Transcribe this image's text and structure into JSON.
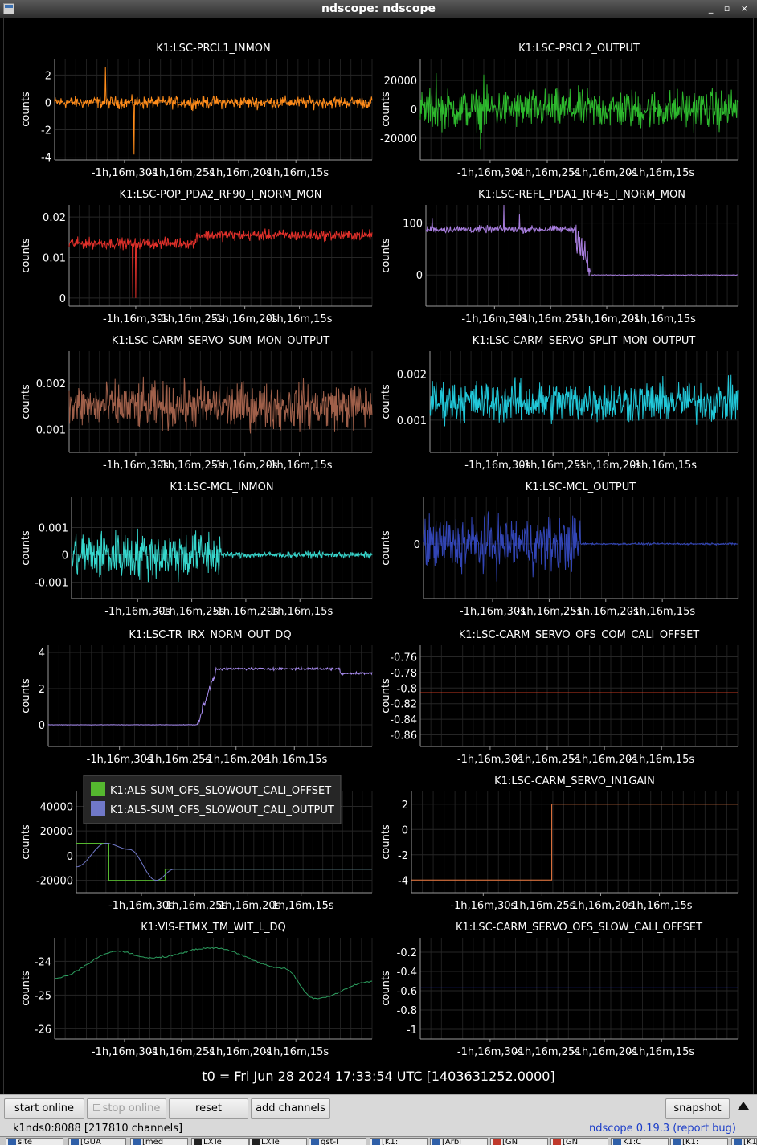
{
  "window": {
    "title": "ndscope: ndscope",
    "buttons_glyph": "_ ▫ ×"
  },
  "x_ticks": [
    "-1h,16m,30s",
    "-1h,16m,25s",
    "-1h,16m,20s",
    "-1h,16m,15s"
  ],
  "t0_label": "t0 = Fri Jun 28 2024 17:33:54 UTC [1403631252.0000]",
  "y_axis_label": "counts",
  "panels": [
    {
      "title": "K1:LSC-PRCL1_INMON",
      "y_ticks": [
        "2",
        "0",
        "-2",
        "-4"
      ],
      "color": "#ff8c1a"
    },
    {
      "title": "K1:LSC-PRCL2_OUTPUT",
      "y_ticks": [
        "20000",
        "0",
        "-20000"
      ],
      "color": "#2db82d"
    },
    {
      "title": "K1:LSC-POP_PDA2_RF90_I_NORM_MON",
      "y_ticks": [
        "0.02",
        "0.01",
        "0"
      ],
      "color": "#e0302a"
    },
    {
      "title": "K1:LSC-REFL_PDA1_RF45_I_NORM_MON",
      "y_ticks": [
        "100",
        "0"
      ],
      "color": "#a77ddd"
    },
    {
      "title": "K1:LSC-CARM_SERVO_SUM_MON_OUTPUT",
      "y_ticks": [
        "0.002",
        "0.001"
      ],
      "color": "#a0604a"
    },
    {
      "title": "K1:LSC-CARM_SERVO_SPLIT_MON_OUTPUT",
      "y_ticks": [
        "0.002",
        "0.001"
      ],
      "color": "#21c7d8"
    },
    {
      "title": "K1:LSC-MCL_INMON",
      "y_ticks": [
        "0.001",
        "0",
        "-0.001"
      ],
      "color": "#36d6cc"
    },
    {
      "title": "K1:LSC-MCL_OUTPUT",
      "y_ticks": [
        "0"
      ],
      "color": "#3245b5"
    },
    {
      "title": "K1:LSC-TR_IRX_NORM_OUT_DQ",
      "y_ticks": [
        "4",
        "2",
        "0"
      ],
      "color": "#a88cf0"
    },
    {
      "title": "K1:LSC-CARM_SERVO_OFS_COM_CALI_OFFSET",
      "y_ticks": [
        "-0.76",
        "-0.78",
        "-0.8",
        "-0.82",
        "-0.84",
        "-0.86"
      ],
      "color": "#ff4a2a"
    },
    {
      "title": "",
      "y_ticks": [
        "40000",
        "20000",
        "0",
        "-20000"
      ],
      "color": "#2db82d",
      "legend": [
        {
          "label": "K1:ALS-SUM_OFS_SLOWOUT_CALI_OFFSET",
          "color": "#55b82f"
        },
        {
          "label": "K1:ALS-SUM_OFS_SLOWOUT_CALI_OUTPUT",
          "color": "#7078c8"
        }
      ]
    },
    {
      "title": "K1:LSC-CARM_SERVO_IN1GAIN",
      "y_ticks": [
        "2",
        "0",
        "-2",
        "-4"
      ],
      "color": "#f07a40"
    },
    {
      "title": "K1:VIS-ETMX_TM_WIT_L_DQ",
      "y_ticks": [
        "-24",
        "-25",
        "-26"
      ],
      "color": "#2da060"
    },
    {
      "title": "K1:LSC-CARM_SERVO_OFS_SLOW_CALI_OFFSET",
      "y_ticks": [
        "-0.2",
        "-0.4",
        "-0.6",
        "-0.8",
        "-1"
      ],
      "color": "#2f3ff0"
    }
  ],
  "chart_data": [
    {
      "type": "line",
      "title": "K1:LSC-PRCL1_INMON",
      "ylabel": "counts",
      "ylim": [
        -4.2,
        3.2
      ],
      "series": [
        {
          "shape": "noise",
          "mean": 0,
          "amp": 0.4,
          "spikes": [
            [
              0.16,
              2.6
            ],
            [
              0.25,
              -3.8
            ]
          ]
        }
      ]
    },
    {
      "type": "line",
      "title": "K1:LSC-PRCL2_OUTPUT",
      "ylabel": "counts",
      "ylim": [
        -35000,
        35000
      ],
      "series": [
        {
          "shape": "noise",
          "mean": 0,
          "amp": 12000,
          "spikes": [
            [
              0.05,
              25000
            ],
            [
              0.19,
              -28000
            ],
            [
              0.2,
              24000
            ]
          ]
        }
      ]
    },
    {
      "type": "line",
      "title": "K1:LSC-POP_PDA2_RF90_I_NORM_MON",
      "ylabel": "counts",
      "ylim": [
        -0.002,
        0.023
      ],
      "series": [
        {
          "shape": "step-noise",
          "before": 0.0135,
          "after": 0.0155,
          "split": 0.42,
          "amp": 0.0012,
          "spikes": [
            [
              0.21,
              -0.0
            ],
            [
              0.22,
              0.0
            ]
          ]
        }
      ]
    },
    {
      "type": "line",
      "title": "K1:LSC-REFL_PDA1_RF45_I_NORM_MON",
      "ylabel": "counts",
      "ylim": [
        -60,
        135
      ],
      "series": [
        {
          "shape": "drop",
          "before": 88,
          "after": 0,
          "split": 0.48,
          "settle": 0.53,
          "amp": 6,
          "spikes": [
            [
              0.02,
              110
            ],
            [
              0.25,
              135
            ],
            [
              0.3,
              118
            ]
          ]
        }
      ]
    },
    {
      "type": "line",
      "title": "K1:LSC-CARM_SERVO_SUM_MON_OUTPUT",
      "ylabel": "counts",
      "ylim": [
        0.0005,
        0.0027
      ],
      "series": [
        {
          "shape": "noise",
          "mean": 0.0015,
          "amp": 0.00045
        }
      ]
    },
    {
      "type": "line",
      "title": "K1:LSC-CARM_SERVO_SPLIT_MON_OUTPUT",
      "ylabel": "counts",
      "ylim": [
        0.0003,
        0.0025
      ],
      "series": [
        {
          "shape": "noise",
          "mean": 0.0014,
          "amp": 0.0004
        }
      ]
    },
    {
      "type": "line",
      "title": "K1:LSC-MCL_INMON",
      "ylabel": "counts",
      "ylim": [
        -0.0016,
        0.0021
      ],
      "series": [
        {
          "shape": "quiet-after",
          "mean": 0,
          "amp": 0.0008,
          "quiet_amp": 0.0001,
          "split": 0.5
        }
      ]
    },
    {
      "type": "line",
      "title": "K1:LSC-MCL_OUTPUT",
      "ylabel": "counts",
      "ylim": [
        -0.002,
        0.0017
      ],
      "series": [
        {
          "shape": "quiet-after",
          "mean": 0,
          "amp": 0.0009,
          "quiet_amp": 3e-05,
          "split": 0.5
        }
      ]
    },
    {
      "type": "line",
      "title": "K1:LSC-TR_IRX_NORM_OUT_DQ",
      "ylabel": "counts",
      "ylim": [
        -1.2,
        4.4
      ],
      "series": [
        {
          "shape": "ramp-up",
          "before": 0,
          "after": 3.1,
          "split": 0.46,
          "settle": 0.52,
          "amp": 0.06
        }
      ]
    },
    {
      "type": "line",
      "title": "K1:LSC-CARM_SERVO_OFS_COM_CALI_OFFSET",
      "ylabel": "counts",
      "ylim": [
        -0.875,
        -0.745
      ],
      "series": [
        {
          "shape": "flat",
          "mean": -0.806
        }
      ]
    },
    {
      "type": "line",
      "ylabel": "counts",
      "ylim": [
        -30000,
        52000
      ],
      "series": [
        {
          "name": "K1:ALS-SUM_OFS_SLOWOUT_CALI_OFFSET",
          "shape": "steps",
          "points": [
            [
              0,
              10000
            ],
            [
              0.11,
              10000
            ],
            [
              0.11,
              -20000
            ],
            [
              0.3,
              -20000
            ],
            [
              0.3,
              -11000
            ],
            [
              1,
              -11000
            ]
          ]
        },
        {
          "name": "K1:ALS-SUM_OFS_SLOWOUT_CALI_OUTPUT",
          "shape": "curve",
          "points": [
            [
              0,
              -9000
            ],
            [
              0.1,
              10000
            ],
            [
              0.18,
              5000
            ],
            [
              0.27,
              -20000
            ],
            [
              0.33,
              -11000
            ],
            [
              1,
              -11000
            ]
          ]
        }
      ]
    },
    {
      "type": "line",
      "title": "K1:LSC-CARM_SERVO_IN1GAIN",
      "ylabel": "counts",
      "ylim": [
        -5,
        3
      ],
      "series": [
        {
          "shape": "steps",
          "points": [
            [
              0,
              -4
            ],
            [
              0.43,
              -4
            ],
            [
              0.43,
              2
            ],
            [
              1,
              2
            ]
          ]
        }
      ]
    },
    {
      "type": "line",
      "title": "K1:VIS-ETMX_TM_WIT_L_DQ",
      "ylabel": "counts",
      "ylim": [
        -26.3,
        -23.3
      ],
      "series": [
        {
          "shape": "curve",
          "points": [
            [
              0,
              -24.5
            ],
            [
              0.2,
              -23.7
            ],
            [
              0.3,
              -23.9
            ],
            [
              0.5,
              -23.6
            ],
            [
              0.72,
              -24.2
            ],
            [
              0.82,
              -25.1
            ],
            [
              1,
              -24.6
            ]
          ]
        }
      ]
    },
    {
      "type": "line",
      "title": "K1:LSC-CARM_SERVO_OFS_SLOW_CALI_OFFSET",
      "ylabel": "counts",
      "ylim": [
        -1.1,
        -0.05
      ],
      "series": [
        {
          "shape": "flat",
          "mean": -0.57
        }
      ]
    }
  ],
  "controls": {
    "start_online": "start online",
    "stop_online": "stop online",
    "reset": "reset",
    "add_channels": "add channels",
    "snapshot": "snapshot"
  },
  "status": {
    "server": "k1nds0:8088  [217810 channels]",
    "version": "ndscope 0.19.3 (report bug)"
  },
  "taskbar": [
    "site",
    "[GUA",
    "[med",
    "LXTe",
    "LXTe",
    "gst-l",
    "[K1:",
    "[Arbi",
    "[GN",
    "[GN",
    "K1:C",
    "[K1:",
    "[K1:"
  ]
}
